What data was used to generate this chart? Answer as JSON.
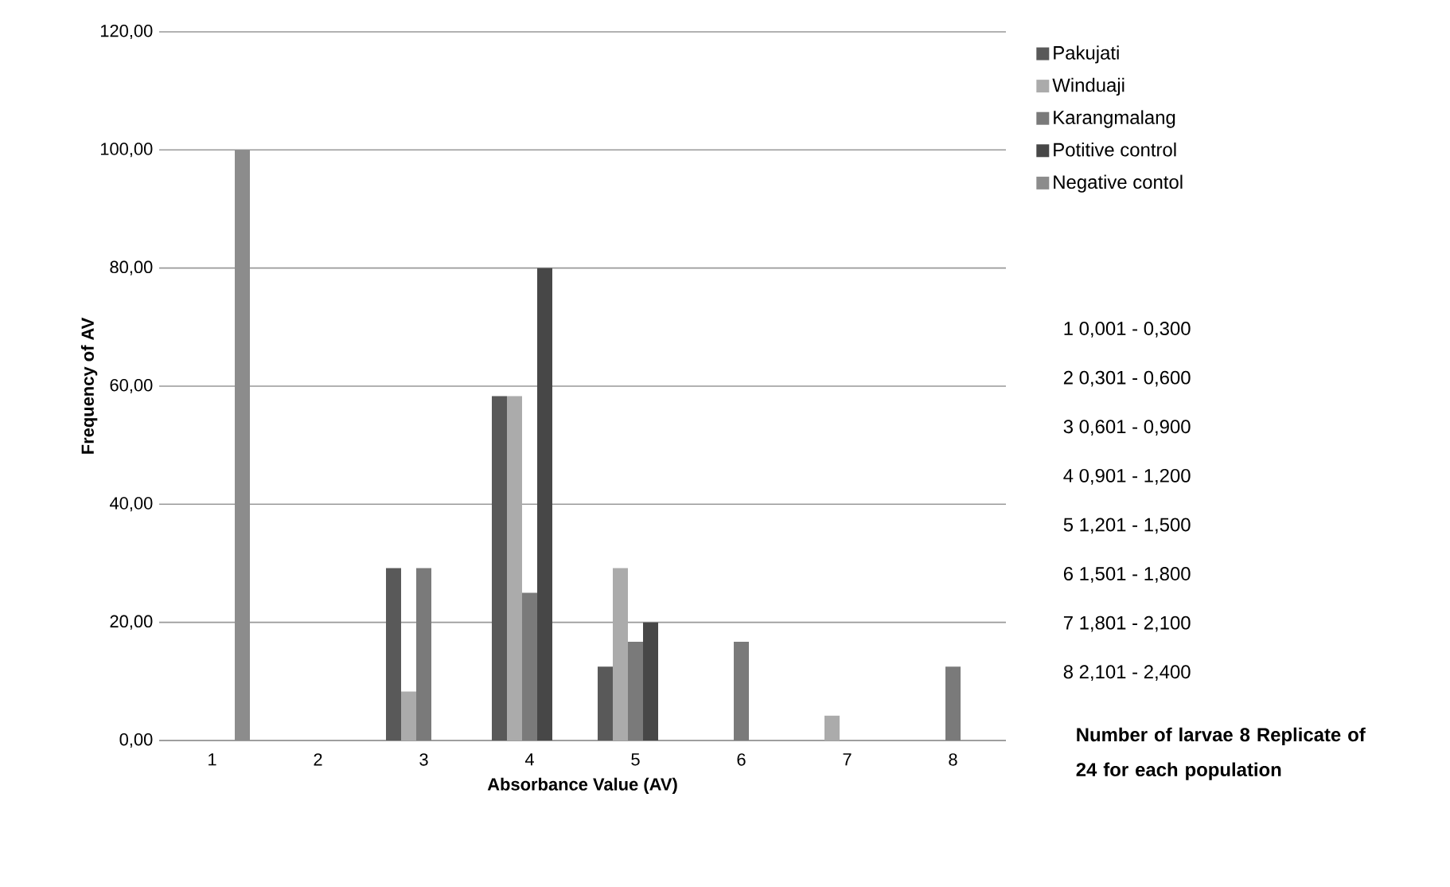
{
  "chart_data": {
    "type": "bar",
    "xlabel": "Absorbance Value (AV)",
    "ylabel": "Frequency of AV",
    "categories": [
      "1",
      "2",
      "3",
      "4",
      "5",
      "6",
      "7",
      "8"
    ],
    "series": [
      {
        "name": "Pakujati",
        "color": "#595959",
        "values": [
          null,
          null,
          29.2,
          58.3,
          12.5,
          null,
          null,
          null
        ]
      },
      {
        "name": "Winduaji",
        "color": "#ababab",
        "values": [
          null,
          null,
          8.3,
          58.3,
          29.2,
          null,
          4.2,
          null
        ]
      },
      {
        "name": "Karangmalang",
        "color": "#7a7a7a",
        "values": [
          null,
          null,
          29.2,
          25,
          16.7,
          16.7,
          null,
          12.5
        ]
      },
      {
        "name": "Potitive control",
        "color": "#474747",
        "values": [
          null,
          null,
          null,
          80,
          20,
          null,
          null,
          null
        ]
      },
      {
        "name": "Negative contol",
        "color": "#8c8c8c",
        "values": [
          100,
          null,
          null,
          null,
          null,
          null,
          null,
          null
        ]
      }
    ],
    "ylim": [
      0,
      120
    ],
    "yticks": [
      {
        "value": 0,
        "label": "0,00"
      },
      {
        "value": 20,
        "label": "20,00"
      },
      {
        "value": 40,
        "label": "40,00"
      },
      {
        "value": 60,
        "label": "60,00"
      },
      {
        "value": 80,
        "label": "80,00"
      },
      {
        "value": 100,
        "label": "100,00"
      },
      {
        "value": 120,
        "label": "120,00"
      }
    ],
    "grid": "y",
    "legend": "right",
    "annotations": [
      "1 0,001 - 0,300",
      "2 0,301 - 0,600",
      "3 0,601 - 0,900",
      "4 0,901 - 1,200",
      "5 1,201 - 1,500",
      "6 1,501 - 1,800",
      "7 1,801 - 2,100",
      "8 2,101 - 2,400",
      "Number of larvae 8 Replicate of 24 for each population"
    ]
  }
}
